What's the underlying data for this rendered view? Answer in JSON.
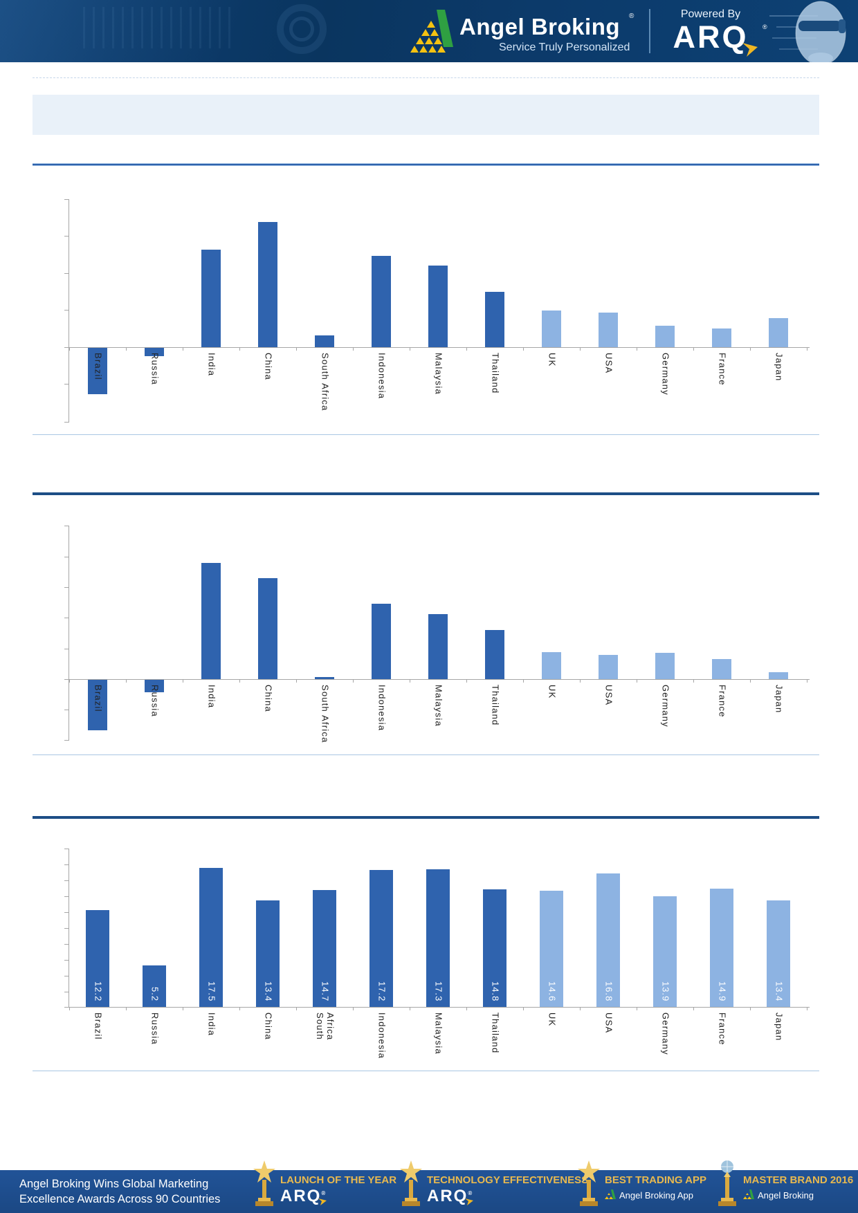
{
  "header": {
    "brand_name": "Angel Broking",
    "brand_registered": "®",
    "brand_tagline": "Service Truly Personalized",
    "powered_by_label": "Powered By",
    "powered_by_product": "ARQ",
    "powered_by_registered": "®"
  },
  "title_box_text": "",
  "colors": {
    "bar_dark": "#2F63AE",
    "bar_light": "#8DB3E2",
    "axis_gray": "#A6A6A6",
    "section_rule_dark": "#1D4E86",
    "title_rule_blue": "#2E62AC",
    "thin_rule_blue": "#A9C6E3",
    "title_box_bg": "#E9F1F9",
    "header_navy": "#0B3A68",
    "footer_blue": "#1E4E8C",
    "award_gold": "#E8B94F",
    "logo_yellow": "#F5C211",
    "logo_green": "#2FA042"
  },
  "chart_data": [
    {
      "type": "bar",
      "title": "",
      "categories": [
        "Brazil",
        "Russia",
        "India",
        "China",
        "South Africa",
        "Indonesia",
        "Malaysia",
        "Thailand",
        "UK",
        "USA",
        "Germany",
        "France",
        "Japan"
      ],
      "values": [
        -1.25,
        -0.22,
        2.65,
        3.4,
        0.31,
        2.47,
        2.22,
        1.5,
        1.0,
        0.94,
        0.59,
        0.51,
        0.79
      ],
      "value_note": "y-axis has tick marks but no numeric labels; values estimated in gridline units",
      "ylim": [
        -2,
        4
      ],
      "gridline_unit": 1,
      "dark_count": 8,
      "grid": "ticks only",
      "legend": "none"
    },
    {
      "type": "bar",
      "title": "",
      "categories": [
        "Brazil",
        "Russia",
        "India",
        "China",
        "South Africa",
        "Indonesia",
        "Malaysia",
        "Thailand",
        "UK",
        "USA",
        "Germany",
        "France",
        "Japan"
      ],
      "values": [
        -1.65,
        -0.41,
        3.8,
        3.3,
        0.06,
        2.45,
        2.13,
        1.61,
        0.89,
        0.79,
        0.85,
        0.65,
        0.23
      ],
      "value_note": "y-axis has tick marks but no numeric labels; values estimated in gridline units",
      "ylim": [
        -2,
        5
      ],
      "gridline_unit": 1,
      "dark_count": 8,
      "grid": "ticks only",
      "legend": "none"
    },
    {
      "type": "bar",
      "title": "",
      "categories": [
        "Brazil",
        "Russia",
        "India",
        "China",
        "South\nAfrica",
        "Indonesia",
        "Malaysia",
        "Thailand",
        "UK",
        "USA",
        "Germany",
        "France",
        "Japan"
      ],
      "values": [
        12.2,
        5.2,
        17.5,
        13.4,
        14.7,
        17.2,
        17.3,
        14.8,
        14.6,
        16.8,
        13.9,
        14.9,
        13.4
      ],
      "data_labels": [
        "12.2",
        "5.2",
        "17.5",
        "13.4",
        "14.7",
        "17.2",
        "17.3",
        "14.8",
        "14.6",
        "16.8",
        "13.9",
        "14.9",
        "13.4"
      ],
      "ylim": [
        0,
        20
      ],
      "tick_interval": 2,
      "dark_count": 8,
      "grid": "ticks only",
      "legend": "none"
    }
  ],
  "footer": {
    "message_line1": "Angel Broking Wins Global Marketing",
    "message_line2": "Excellence Awards Across 90 Countries",
    "awards": [
      {
        "title": "LAUNCH OF THE YEAR",
        "subtitle": "ARQ",
        "registered": "®",
        "kind": "arq"
      },
      {
        "title": "TECHNOLOGY EFFECTIVENESS",
        "subtitle": "ARQ",
        "registered": "®",
        "kind": "arq"
      },
      {
        "title": "BEST TRADING APP",
        "subtitle": "Angel Broking App",
        "kind": "logo"
      },
      {
        "title": "MASTER BRAND 2016",
        "subtitle": "Angel Broking",
        "kind": "logo-globe"
      }
    ]
  }
}
